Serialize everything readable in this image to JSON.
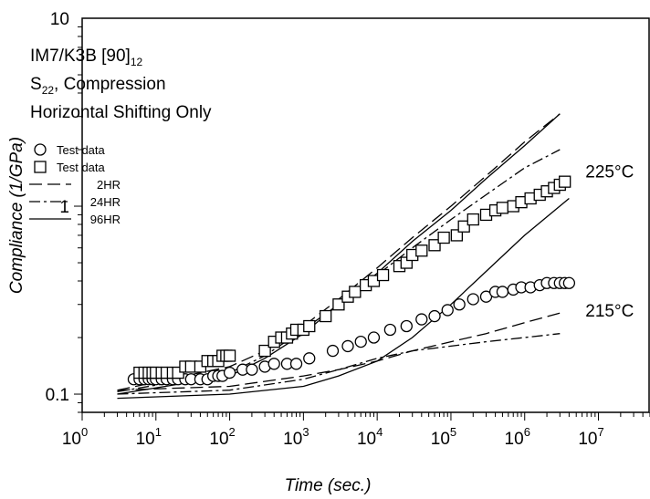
{
  "chart_data": {
    "type": "scatter",
    "xscale": "log",
    "yscale": "log",
    "xlim": [
      1,
      50000000
    ],
    "ylim": [
      0.08,
      10
    ],
    "xticks": [
      {
        "value": 1,
        "base": "10",
        "exp": "0"
      },
      {
        "value": 10,
        "base": "10",
        "exp": "1"
      },
      {
        "value": 100,
        "base": "10",
        "exp": "2"
      },
      {
        "value": 1000,
        "base": "10",
        "exp": "3"
      },
      {
        "value": 10000,
        "base": "10",
        "exp": "4"
      },
      {
        "value": 100000,
        "base": "10",
        "exp": "5"
      },
      {
        "value": 1000000,
        "base": "10",
        "exp": "6"
      },
      {
        "value": 10000000,
        "base": "10",
        "exp": "7"
      }
    ],
    "yticks": [
      {
        "value": 0.1,
        "label": "0.1"
      },
      {
        "value": 1,
        "label": "1"
      },
      {
        "value": 10,
        "label": "10"
      }
    ],
    "xlabel": "Time (sec.)",
    "ylabel": "Compliance (1/GPa)",
    "annotation": {
      "material": "IM7/K3B [90]",
      "material_sub": "12",
      "component": "S",
      "component_sub": "22",
      "loading": ", Compression",
      "method": "Horizontal Shifting Only"
    },
    "temp_labels": [
      {
        "text": "225°C",
        "x": 3000000,
        "y": 1.3
      },
      {
        "text": "215°C",
        "x": 3000000,
        "y": 0.27
      }
    ],
    "legend": {
      "position": "upper-left",
      "entries": [
        {
          "label": "Test data",
          "style": "circle"
        },
        {
          "label": "Test data",
          "style": "square"
        },
        {
          "label": "2HR",
          "style": "dash"
        },
        {
          "label": "24HR",
          "style": "dashdot"
        },
        {
          "label": "96HR",
          "style": "solid"
        }
      ]
    },
    "series": [
      {
        "name": "Test data",
        "marker": "circle",
        "temperature": "215°C",
        "x": [
          5,
          6,
          7,
          8,
          9,
          10,
          12,
          14,
          17,
          20,
          25,
          30,
          40,
          50,
          60,
          70,
          80,
          100,
          150,
          200,
          300,
          400,
          600,
          800,
          1200,
          2500,
          4000,
          6000,
          9000,
          15000,
          25000,
          40000,
          60000,
          90000,
          130000,
          200000,
          300000,
          400000,
          500000,
          700000,
          900000,
          1200000,
          1600000,
          2000000,
          2500000,
          3000000,
          3500000,
          4000000
        ],
        "y": [
          0.12,
          0.12,
          0.12,
          0.12,
          0.12,
          0.12,
          0.12,
          0.12,
          0.12,
          0.12,
          0.12,
          0.12,
          0.12,
          0.12,
          0.125,
          0.125,
          0.125,
          0.13,
          0.135,
          0.135,
          0.14,
          0.145,
          0.145,
          0.145,
          0.155,
          0.17,
          0.18,
          0.19,
          0.2,
          0.22,
          0.23,
          0.25,
          0.26,
          0.28,
          0.3,
          0.32,
          0.33,
          0.35,
          0.35,
          0.36,
          0.37,
          0.37,
          0.38,
          0.39,
          0.39,
          0.39,
          0.39,
          0.39
        ]
      },
      {
        "name": "Test data",
        "marker": "square",
        "temperature": "225°C",
        "x": [
          6,
          7,
          8,
          9,
          10,
          12,
          14,
          17,
          20,
          25,
          30,
          40,
          50,
          60,
          70,
          80,
          90,
          100,
          300,
          400,
          500,
          600,
          700,
          800,
          1000,
          1200,
          2000,
          3000,
          4000,
          5000,
          7000,
          9000,
          12000,
          20000,
          25000,
          30000,
          40000,
          60000,
          80000,
          120000,
          150000,
          200000,
          300000,
          400000,
          500000,
          700000,
          900000,
          1200000,
          1600000,
          2000000,
          2500000,
          3000000,
          3500000
        ],
        "y": [
          0.13,
          0.13,
          0.13,
          0.13,
          0.13,
          0.13,
          0.13,
          0.13,
          0.13,
          0.14,
          0.14,
          0.14,
          0.15,
          0.15,
          0.15,
          0.16,
          0.16,
          0.16,
          0.17,
          0.19,
          0.2,
          0.2,
          0.21,
          0.22,
          0.22,
          0.23,
          0.26,
          0.3,
          0.33,
          0.35,
          0.38,
          0.4,
          0.43,
          0.48,
          0.5,
          0.55,
          0.58,
          0.62,
          0.68,
          0.7,
          0.78,
          0.85,
          0.9,
          0.95,
          0.98,
          1.0,
          1.05,
          1.1,
          1.15,
          1.2,
          1.25,
          1.3,
          1.35
        ]
      },
      {
        "name": "2HR",
        "linestyle": "dash",
        "temperature": "225°C",
        "x": [
          3,
          100,
          300,
          1000,
          3000,
          10000,
          30000,
          100000,
          300000,
          1000000,
          3000000
        ],
        "y": [
          0.105,
          0.14,
          0.17,
          0.23,
          0.32,
          0.47,
          0.68,
          1.0,
          1.45,
          2.2,
          3.1
        ]
      },
      {
        "name": "24HR",
        "linestyle": "dashdot",
        "temperature": "225°C",
        "x": [
          3,
          100,
          300,
          1000,
          3000,
          10000,
          30000,
          100000,
          300000,
          1000000,
          3000000
        ],
        "y": [
          0.103,
          0.13,
          0.16,
          0.22,
          0.3,
          0.43,
          0.6,
          0.85,
          1.15,
          1.6,
          2.0
        ]
      },
      {
        "name": "96HR",
        "linestyle": "solid",
        "temperature": "225°C",
        "x": [
          3,
          100,
          300,
          1000,
          3000,
          10000,
          30000,
          100000,
          300000,
          1000000,
          3000000
        ],
        "y": [
          0.1,
          0.125,
          0.155,
          0.21,
          0.3,
          0.44,
          0.65,
          0.95,
          1.4,
          2.1,
          3.1
        ]
      },
      {
        "name": "2HR",
        "linestyle": "dash",
        "temperature": "215°C",
        "x": [
          3,
          100,
          1000,
          3000,
          10000,
          30000,
          100000,
          300000,
          1000000,
          3000000
        ],
        "y": [
          0.105,
          0.11,
          0.125,
          0.135,
          0.15,
          0.17,
          0.19,
          0.21,
          0.24,
          0.27
        ]
      },
      {
        "name": "24HR",
        "linestyle": "dashdot",
        "temperature": "215°C",
        "x": [
          3,
          100,
          1000,
          3000,
          10000,
          30000,
          100000,
          300000,
          1000000,
          3000000
        ],
        "y": [
          0.1,
          0.105,
          0.12,
          0.135,
          0.155,
          0.17,
          0.18,
          0.19,
          0.2,
          0.21
        ]
      },
      {
        "name": "96HR",
        "linestyle": "solid",
        "temperature": "215°C",
        "x": [
          3,
          100,
          1000,
          3000,
          10000,
          30000,
          100000,
          300000,
          1000000,
          4000000
        ],
        "y": [
          0.095,
          0.1,
          0.11,
          0.125,
          0.15,
          0.2,
          0.3,
          0.45,
          0.7,
          1.1
        ]
      }
    ]
  }
}
